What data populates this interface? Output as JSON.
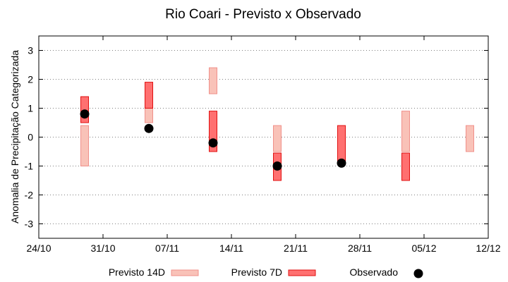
{
  "chart_data": {
    "type": "floating-bar",
    "title": "Rio Coari - Previsto x Observado",
    "ylabel": "Anomalia de Precipitação Categorizada",
    "ylim": [
      -3.5,
      3.5
    ],
    "yticks": [
      -3,
      -2,
      -1,
      0,
      1,
      2,
      3
    ],
    "xlim": [
      "2023-10-24",
      "2023-12-12"
    ],
    "xticks": [
      "24/10",
      "31/10",
      "07/11",
      "14/11",
      "21/11",
      "28/11",
      "05/12",
      "12/12"
    ],
    "grid": true,
    "legend_position": "bottom",
    "colors": {
      "previsto14d_fill": "#f9c2b8",
      "previsto14d_stroke": "#f0908a",
      "previsto7d_fill": "#ff7070",
      "previsto7d_stroke": "#e01010",
      "observado": "#000000"
    },
    "series": [
      {
        "name": "Previsto 14D",
        "kind": "range",
        "points": [
          {
            "x": "2023-10-29",
            "low": -1.0,
            "high": 0.4
          },
          {
            "x": "2023-11-05",
            "low": 0.5,
            "high": 1.4
          },
          {
            "x": "2023-11-12",
            "low": 1.5,
            "high": 2.4
          },
          {
            "x": "2023-11-19",
            "low": -0.5,
            "high": 0.4
          },
          {
            "x": "2023-12-03",
            "low": -0.5,
            "high": 0.9
          },
          {
            "x": "2023-12-10",
            "low": -0.5,
            "high": 0.4
          }
        ]
      },
      {
        "name": "Previsto 7D",
        "kind": "range",
        "points": [
          {
            "x": "2023-10-29",
            "low": 0.5,
            "high": 1.4
          },
          {
            "x": "2023-11-05",
            "low": 1.0,
            "high": 1.9
          },
          {
            "x": "2023-11-12",
            "low": -0.5,
            "high": 0.9
          },
          {
            "x": "2023-11-19",
            "low": -1.5,
            "high": -0.55
          },
          {
            "x": "2023-11-26",
            "low": -0.9,
            "high": 0.4
          },
          {
            "x": "2023-12-03",
            "low": -1.5,
            "high": -0.55
          }
        ]
      },
      {
        "name": "Observado",
        "kind": "points",
        "points": [
          {
            "x": "2023-10-29",
            "y": 0.8
          },
          {
            "x": "2023-11-05",
            "y": 0.3
          },
          {
            "x": "2023-11-12",
            "y": -0.2
          },
          {
            "x": "2023-11-19",
            "y": -1.0
          },
          {
            "x": "2023-11-26",
            "y": -0.9
          }
        ]
      }
    ]
  }
}
